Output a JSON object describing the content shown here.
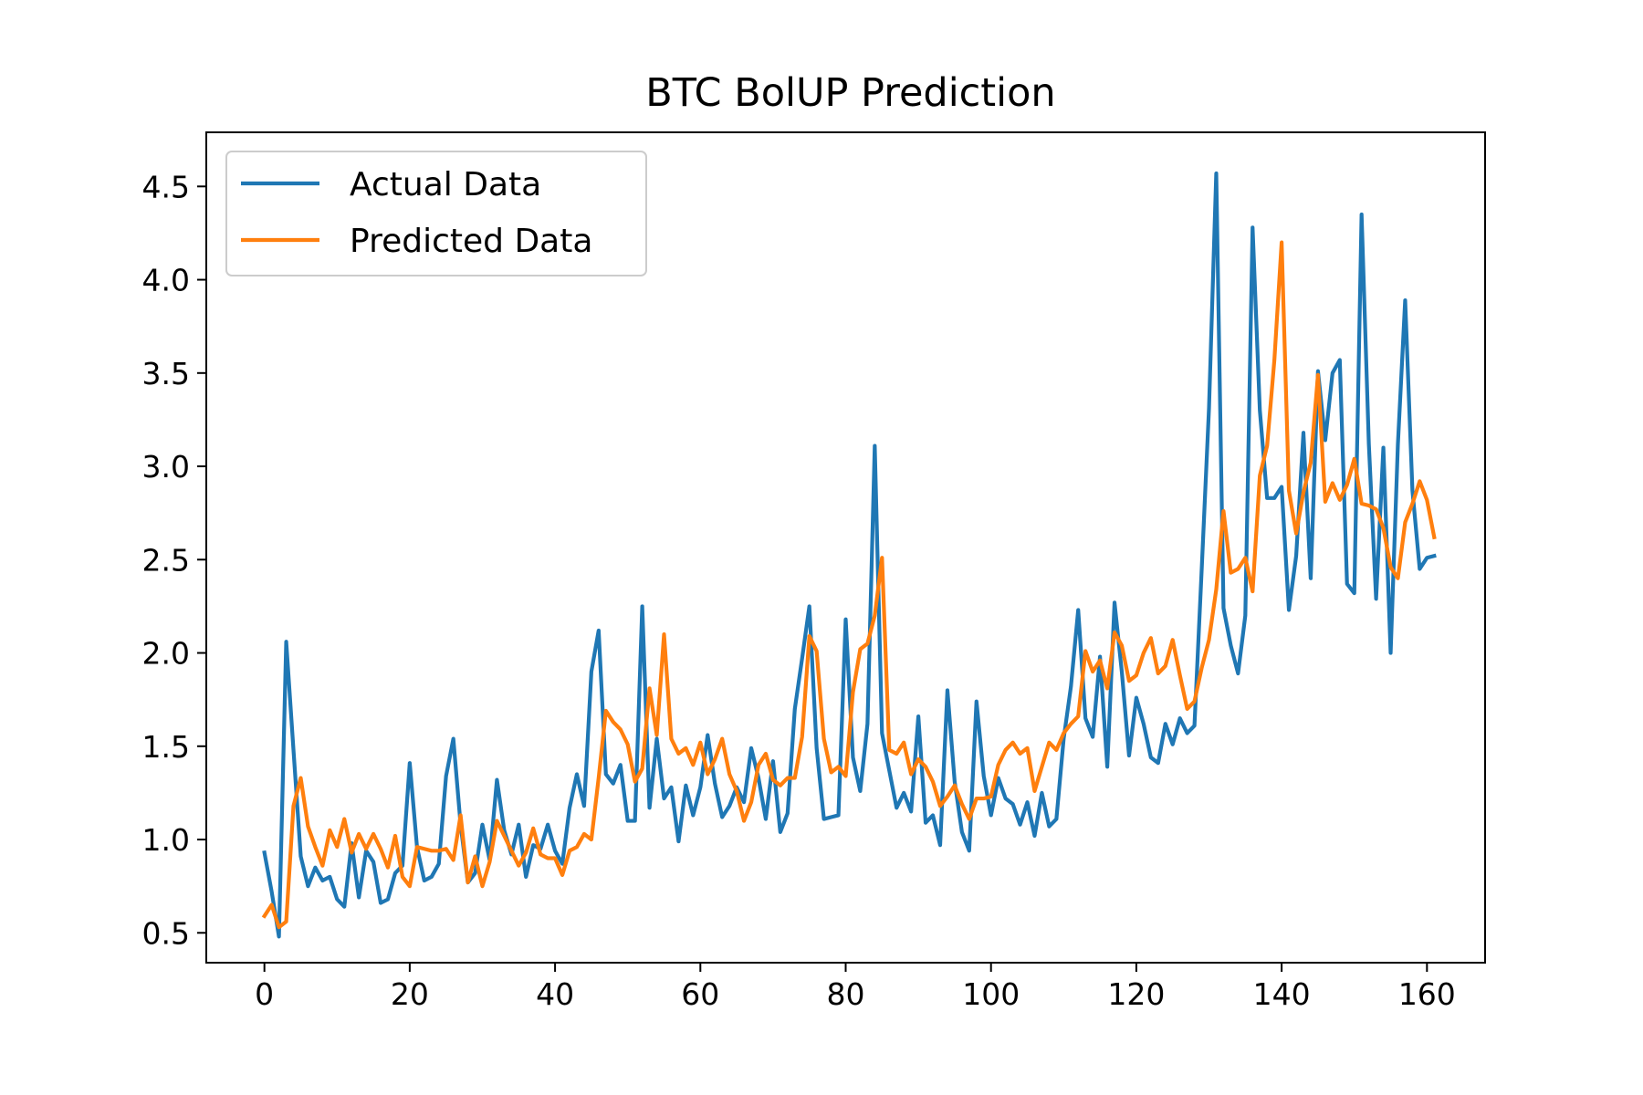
{
  "chart_data": {
    "type": "line",
    "title": "BTC BolUP Prediction",
    "xlabel": "",
    "ylabel": "",
    "xlim": [
      -8,
      168
    ],
    "ylim": [
      0.34,
      4.79
    ],
    "x_ticks": [
      0,
      20,
      40,
      60,
      80,
      100,
      120,
      140,
      160
    ],
    "y_ticks": [
      0.5,
      1.0,
      1.5,
      2.0,
      2.5,
      3.0,
      3.5,
      4.0,
      4.5
    ],
    "x_tick_labels": [
      "0",
      "20",
      "40",
      "60",
      "80",
      "100",
      "120",
      "140",
      "160"
    ],
    "y_tick_labels": [
      "0.5",
      "1.0",
      "1.5",
      "2.0",
      "2.5",
      "3.0",
      "3.5",
      "4.0",
      "4.5"
    ],
    "grid": false,
    "legend_position": "top-left",
    "series": [
      {
        "name": "Actual Data",
        "color": "#1f77b4",
        "values": [
          0.93,
          0.72,
          0.48,
          2.06,
          1.48,
          0.91,
          0.75,
          0.85,
          0.78,
          0.8,
          0.68,
          0.64,
          0.98,
          0.69,
          0.94,
          0.88,
          0.66,
          0.68,
          0.82,
          0.86,
          1.41,
          0.96,
          0.78,
          0.8,
          0.87,
          1.34,
          1.54,
          1.08,
          0.77,
          0.82,
          1.08,
          0.89,
          1.32,
          1.05,
          0.92,
          1.08,
          0.8,
          0.97,
          0.95,
          1.08,
          0.94,
          0.87,
          1.17,
          1.35,
          1.18,
          1.9,
          2.12,
          1.35,
          1.3,
          1.4,
          1.1,
          1.1,
          2.25,
          1.17,
          1.54,
          1.22,
          1.28,
          0.99,
          1.29,
          1.13,
          1.28,
          1.56,
          1.3,
          1.12,
          1.18,
          1.28,
          1.2,
          1.49,
          1.33,
          1.11,
          1.42,
          1.04,
          1.14,
          1.7,
          1.97,
          2.25,
          1.49,
          1.11,
          1.12,
          1.13,
          2.18,
          1.44,
          1.26,
          1.62,
          3.11,
          1.57,
          1.37,
          1.17,
          1.25,
          1.15,
          1.66,
          1.09,
          1.13,
          0.97,
          1.8,
          1.31,
          1.04,
          0.94,
          1.74,
          1.34,
          1.13,
          1.33,
          1.22,
          1.19,
          1.08,
          1.2,
          1.02,
          1.25,
          1.07,
          1.11,
          1.54,
          1.82,
          2.23,
          1.65,
          1.55,
          1.98,
          1.39,
          2.27,
          1.9,
          1.45,
          1.76,
          1.62,
          1.44,
          1.41,
          1.62,
          1.51,
          1.65,
          1.57,
          1.61,
          2.45,
          3.31,
          4.57,
          2.24,
          2.04,
          1.89,
          2.2,
          4.28,
          3.3,
          2.83,
          2.83,
          2.89,
          2.23,
          2.52,
          3.18,
          2.4,
          3.51,
          3.14,
          3.5,
          3.57,
          2.37,
          2.32,
          4.35,
          3.12,
          2.29,
          3.1,
          2.0,
          3.12,
          3.89,
          2.87,
          2.45,
          2.51,
          2.52
        ]
      },
      {
        "name": "Predicted Data",
        "color": "#ff7f0e",
        "values": [
          0.59,
          0.65,
          0.53,
          0.56,
          1.18,
          1.33,
          1.07,
          0.96,
          0.86,
          1.05,
          0.96,
          1.11,
          0.93,
          1.03,
          0.95,
          1.03,
          0.95,
          0.85,
          1.02,
          0.8,
          0.75,
          0.96,
          0.95,
          0.94,
          0.94,
          0.95,
          0.89,
          1.13,
          0.77,
          0.91,
          0.75,
          0.88,
          1.1,
          1.02,
          0.94,
          0.86,
          0.93,
          1.06,
          0.92,
          0.9,
          0.9,
          0.81,
          0.94,
          0.96,
          1.03,
          1.0,
          1.33,
          1.69,
          1.63,
          1.59,
          1.51,
          1.31,
          1.38,
          1.81,
          1.56,
          2.1,
          1.54,
          1.46,
          1.49,
          1.4,
          1.52,
          1.35,
          1.43,
          1.54,
          1.35,
          1.26,
          1.1,
          1.2,
          1.4,
          1.46,
          1.32,
          1.29,
          1.33,
          1.33,
          1.55,
          2.09,
          2.01,
          1.54,
          1.36,
          1.39,
          1.34,
          1.79,
          2.02,
          2.05,
          2.2,
          2.51,
          1.48,
          1.46,
          1.52,
          1.35,
          1.43,
          1.39,
          1.31,
          1.18,
          1.23,
          1.29,
          1.19,
          1.11,
          1.22,
          1.22,
          1.23,
          1.4,
          1.48,
          1.52,
          1.46,
          1.49,
          1.26,
          1.39,
          1.52,
          1.48,
          1.57,
          1.62,
          1.66,
          2.01,
          1.9,
          1.96,
          1.81,
          2.11,
          2.04,
          1.85,
          1.88,
          2.0,
          2.08,
          1.89,
          1.93,
          2.07,
          1.88,
          1.7,
          1.74,
          1.92,
          2.07,
          2.34,
          2.76,
          2.43,
          2.45,
          2.51,
          2.33,
          2.95,
          3.11,
          3.57,
          4.2,
          2.87,
          2.64,
          2.86,
          3.02,
          3.49,
          2.81,
          2.91,
          2.82,
          2.9,
          3.04,
          2.8,
          2.79,
          2.77,
          2.67,
          2.46,
          2.4,
          2.7,
          2.8,
          2.92,
          2.82,
          2.62
        ]
      }
    ]
  }
}
